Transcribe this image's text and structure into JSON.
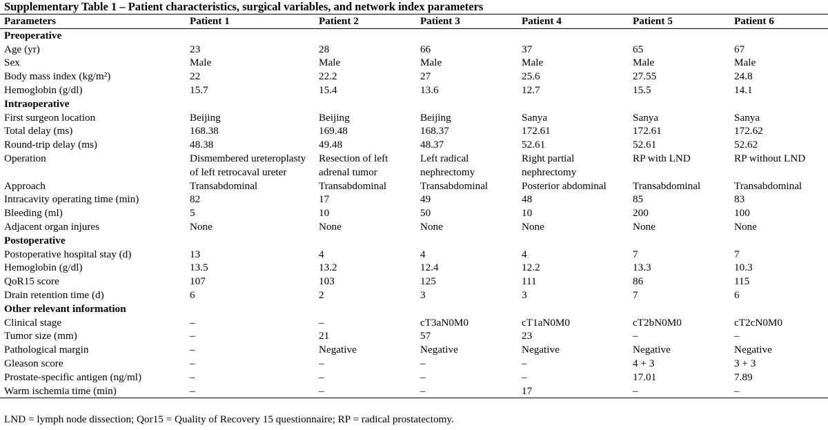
{
  "title": "Supplementary Table 1 – Patient characteristics, surgical variables, and network index parameters",
  "headers": [
    "Parameters",
    "Patient 1",
    "Patient 2",
    "Patient 3",
    "Patient 4",
    "Patient 5",
    "Patient 6"
  ],
  "sections": {
    "preoperative": "Preoperative",
    "intraoperative": "Intraoperative",
    "postoperative": "Postoperative",
    "other": "Other relevant information"
  },
  "rows": {
    "age": [
      "Age (yr)",
      "23",
      "28",
      "66",
      "37",
      "65",
      "67"
    ],
    "sex": [
      "Sex",
      "Male",
      "Male",
      "Male",
      "Male",
      "Male",
      "Male"
    ],
    "bmi": [
      "Body mass index (kg/m²)",
      "22",
      "22.2",
      "27",
      "25.6",
      "27.55",
      "24.8"
    ],
    "hb_pre": [
      "Hemoglobin (g/dl)",
      "15.7",
      "15.4",
      "13.6",
      "12.7",
      "15.5",
      "14.1"
    ],
    "location": [
      "First surgeon location",
      "Beijing",
      "Beijing",
      "Beijing",
      "Sanya",
      "Sanya",
      "Sanya"
    ],
    "total_delay": [
      "Total delay (ms)",
      "168.38",
      "169.48",
      "168.37",
      "172.61",
      "172.61",
      "172.62"
    ],
    "rt_delay": [
      "Round-trip delay (ms)",
      "48.38",
      "49.48",
      "48.37",
      "52.61",
      "52.61",
      "52.62"
    ],
    "operation": [
      "Operation",
      "Dismembered ureteroplasty of left retrocaval ureter",
      "Resection of left adrenal tumor",
      "Left radical nephrectomy",
      "Right partial nephrectomy",
      "RP with LND",
      "RP without LND"
    ],
    "approach": [
      "Approach",
      "Transabdominal",
      "Transabdominal",
      "Transabdominal",
      "Posterior abdominal",
      "Transabdominal",
      "Transabdominal"
    ],
    "op_time": [
      "Intracavity operating time (min)",
      "82",
      "17",
      "49",
      "48",
      "85",
      "83"
    ],
    "bleeding": [
      "Bleeding (ml)",
      "5",
      "10",
      "50",
      "10",
      "200",
      "100"
    ],
    "injures": [
      "Adjacent organ injures",
      "None",
      "None",
      "None",
      "None",
      "None",
      "None"
    ],
    "stay": [
      "Postoperative hospital stay (d)",
      "13",
      "4",
      "4",
      "4",
      "7",
      "7"
    ],
    "hb_post": [
      "Hemoglobin (g/dl)",
      "13.5",
      "13.2",
      "12.4",
      "12.2",
      "13.3",
      "10.3"
    ],
    "qor15": [
      "QoR15 score",
      "107",
      "103",
      "125",
      "111",
      "86",
      "115"
    ],
    "drain": [
      "Drain retention time (d)",
      "6",
      "2",
      "3",
      "3",
      "7",
      "6"
    ],
    "stage": [
      "Clinical stage",
      "–",
      "–",
      "cT3aN0M0",
      "cT1aN0M0",
      "cT2bN0M0",
      "cT2cN0M0"
    ],
    "tumor": [
      "Tumor size (mm)",
      "–",
      "21",
      "57",
      "23",
      "–",
      "–"
    ],
    "margin": [
      "Pathological margin",
      "–",
      "Negative",
      "Negative",
      "Negative",
      "Negative",
      "Negative"
    ],
    "gleason": [
      "Gleason score",
      "–",
      "–",
      "–",
      "–",
      "4 + 3",
      "3 + 3"
    ],
    "psa": [
      "Prostate-specific antigen (ng/ml)",
      "–",
      "–",
      "–",
      "–",
      "17.01",
      "7.89"
    ],
    "warm": [
      "Warm ischemia time (min)",
      "–",
      "–",
      "–",
      "17",
      "–",
      "–"
    ]
  },
  "footnote": "LND = lymph node dissection; Qor15 = Quality of Recovery 15 questionnaire; RP = radical prostatectomy."
}
